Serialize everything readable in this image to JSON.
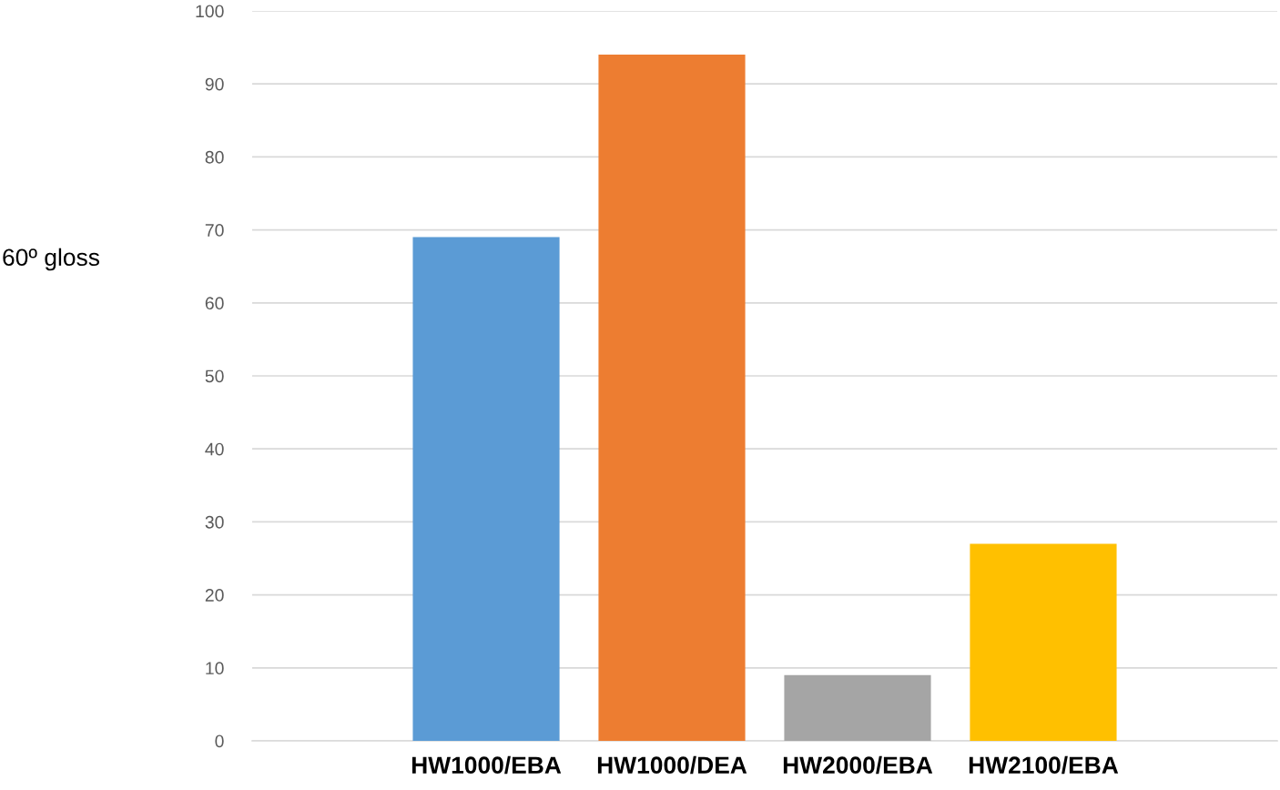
{
  "chart_data": {
    "type": "bar",
    "ylabel": "60º gloss",
    "categories": [
      "HW1000/EBA",
      "HW1000/DEA",
      "HW2000/EBA",
      "HW2100/EBA"
    ],
    "values": [
      69,
      94,
      9,
      27
    ],
    "colors": [
      "#5b9bd5",
      "#ed7d31",
      "#a5a5a5",
      "#ffc000"
    ],
    "ylim": [
      0,
      100
    ],
    "yticks": [
      0,
      10,
      20,
      30,
      40,
      50,
      60,
      70,
      80,
      90,
      100
    ],
    "grid": "y",
    "legend": false
  }
}
